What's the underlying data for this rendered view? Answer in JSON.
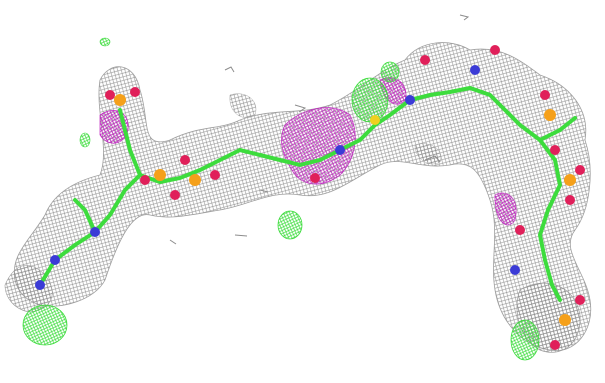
{
  "image": {
    "subject": "molecular-density-map",
    "colors": {
      "background": "#ffffff",
      "mesh": "#8c8c8c",
      "carbon": "#3ddc3d",
      "oxygen": "#e0205a",
      "nitrogen": "#3b3bd6",
      "phosphorus": "#f5a01a",
      "sulfur": "#f0d020",
      "positive_density": "#3ddc3d",
      "negative_density": "#c020c0"
    }
  }
}
